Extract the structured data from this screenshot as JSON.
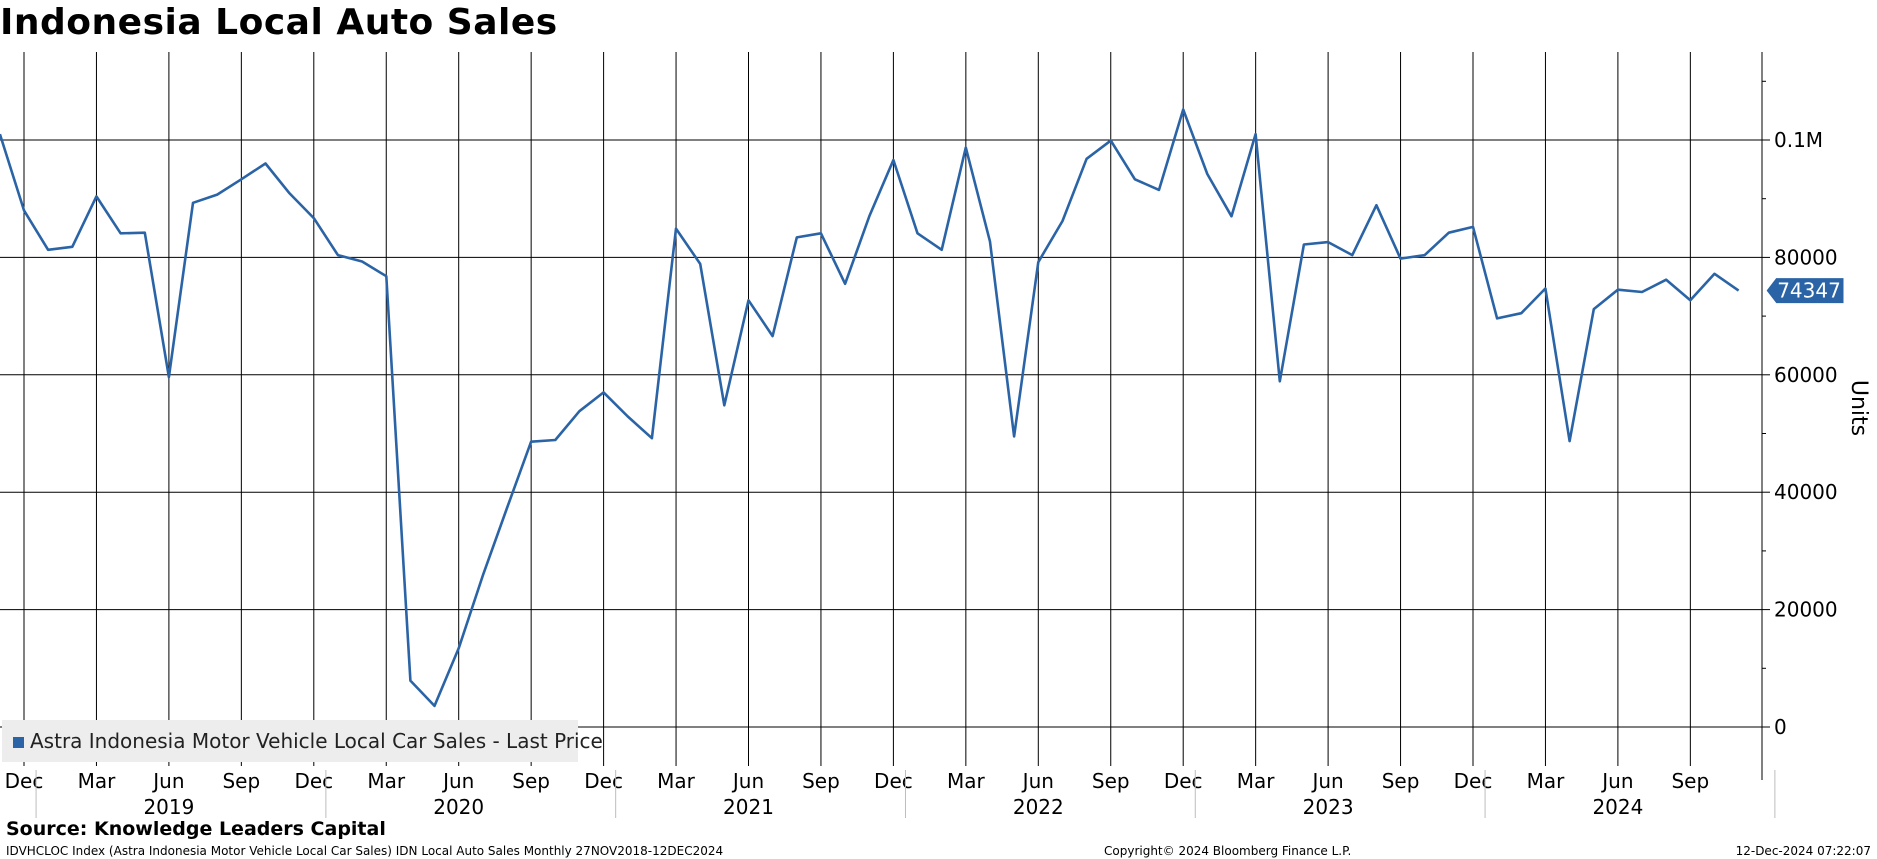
{
  "title": "Indonesia Local Auto Sales",
  "footer": {
    "source": "Source: Knowledge Leaders Capital",
    "description": "IDVHCLOC Index (Astra Indonesia Motor Vehicle Local Car Sales) IDN Local Auto Sales  Monthly 27NOV2018-12DEC2024",
    "copyright": "Copyright© 2024 Bloomberg Finance L.P.",
    "timestamp": "12-Dec-2024 07:22:07"
  },
  "legend": {
    "label": "Astra Indonesia Motor Vehicle Local Car Sales - Last Price",
    "position": "bottom-left"
  },
  "colors": {
    "line": "#2b64a6",
    "grid": "#000000",
    "background": "#ffffff",
    "legend_bg": "#ededed"
  },
  "chart_data": {
    "type": "line",
    "ylabel": "Units",
    "ylim": [
      -6000,
      116000
    ],
    "y_ticks": [
      {
        "value": 0,
        "label": "0"
      },
      {
        "value": 20000,
        "label": "20000"
      },
      {
        "value": 40000,
        "label": "40000"
      },
      {
        "value": 60000,
        "label": "60000"
      },
      {
        "value": 80000,
        "label": "80000"
      },
      {
        "value": 100000,
        "label": "0.1M"
      }
    ],
    "x_month_ticks": [
      {
        "date": "2018-12",
        "label": "Dec"
      },
      {
        "date": "2019-03",
        "label": "Mar"
      },
      {
        "date": "2019-06",
        "label": "Jun"
      },
      {
        "date": "2019-09",
        "label": "Sep"
      },
      {
        "date": "2019-12",
        "label": "Dec"
      },
      {
        "date": "2020-03",
        "label": "Mar"
      },
      {
        "date": "2020-06",
        "label": "Jun"
      },
      {
        "date": "2020-09",
        "label": "Sep"
      },
      {
        "date": "2020-12",
        "label": "Dec"
      },
      {
        "date": "2021-03",
        "label": "Mar"
      },
      {
        "date": "2021-06",
        "label": "Jun"
      },
      {
        "date": "2021-09",
        "label": "Sep"
      },
      {
        "date": "2021-12",
        "label": "Dec"
      },
      {
        "date": "2022-03",
        "label": "Mar"
      },
      {
        "date": "2022-06",
        "label": "Jun"
      },
      {
        "date": "2022-09",
        "label": "Sep"
      },
      {
        "date": "2022-12",
        "label": "Dec"
      },
      {
        "date": "2023-03",
        "label": "Mar"
      },
      {
        "date": "2023-06",
        "label": "Jun"
      },
      {
        "date": "2023-09",
        "label": "Sep"
      },
      {
        "date": "2023-12",
        "label": "Dec"
      },
      {
        "date": "2024-03",
        "label": "Mar"
      },
      {
        "date": "2024-06",
        "label": "Jun"
      },
      {
        "date": "2024-09",
        "label": "Sep"
      }
    ],
    "x_year_labels": [
      {
        "date": "2019-06",
        "label": "2019"
      },
      {
        "date": "2020-06",
        "label": "2020"
      },
      {
        "date": "2021-06",
        "label": "2021"
      },
      {
        "date": "2022-06",
        "label": "2022"
      },
      {
        "date": "2023-06",
        "label": "2023"
      },
      {
        "date": "2024-06",
        "label": "2024"
      }
    ],
    "series": [
      {
        "name": "Astra Indonesia Motor Vehicle Local Car Sales - Last Price",
        "last_value_label": "74347",
        "points": [
          {
            "x": "2018-11",
            "y": 101000
          },
          {
            "x": "2018-12",
            "y": 88000
          },
          {
            "x": "2019-01",
            "y": 81300
          },
          {
            "x": "2019-02",
            "y": 81800
          },
          {
            "x": "2019-03",
            "y": 90400
          },
          {
            "x": "2019-04",
            "y": 84100
          },
          {
            "x": "2019-05",
            "y": 84200
          },
          {
            "x": "2019-06",
            "y": 59600
          },
          {
            "x": "2019-07",
            "y": 89300
          },
          {
            "x": "2019-08",
            "y": 90700
          },
          {
            "x": "2019-09",
            "y": 93300
          },
          {
            "x": "2019-10",
            "y": 96000
          },
          {
            "x": "2019-11",
            "y": 90900
          },
          {
            "x": "2019-12",
            "y": 86700
          },
          {
            "x": "2020-01",
            "y": 80400
          },
          {
            "x": "2020-02",
            "y": 79300
          },
          {
            "x": "2020-03",
            "y": 76800
          },
          {
            "x": "2020-04",
            "y": 7900
          },
          {
            "x": "2020-05",
            "y": 3600
          },
          {
            "x": "2020-06",
            "y": 13400
          },
          {
            "x": "2020-07",
            "y": 25800
          },
          {
            "x": "2020-08",
            "y": 37300
          },
          {
            "x": "2020-09",
            "y": 48600
          },
          {
            "x": "2020-10",
            "y": 48900
          },
          {
            "x": "2020-11",
            "y": 53800
          },
          {
            "x": "2020-12",
            "y": 57000
          },
          {
            "x": "2021-01",
            "y": 52900
          },
          {
            "x": "2021-02",
            "y": 49200
          },
          {
            "x": "2021-03",
            "y": 84900
          },
          {
            "x": "2021-04",
            "y": 78900
          },
          {
            "x": "2021-05",
            "y": 54800
          },
          {
            "x": "2021-06",
            "y": 72700
          },
          {
            "x": "2021-07",
            "y": 66600
          },
          {
            "x": "2021-08",
            "y": 83400
          },
          {
            "x": "2021-09",
            "y": 84100
          },
          {
            "x": "2021-10",
            "y": 75500
          },
          {
            "x": "2021-11",
            "y": 87000
          },
          {
            "x": "2021-12",
            "y": 96600
          },
          {
            "x": "2022-01",
            "y": 84100
          },
          {
            "x": "2022-02",
            "y": 81300
          },
          {
            "x": "2022-03",
            "y": 98700
          },
          {
            "x": "2022-04",
            "y": 82700
          },
          {
            "x": "2022-05",
            "y": 49500
          },
          {
            "x": "2022-06",
            "y": 79200
          },
          {
            "x": "2022-07",
            "y": 86200
          },
          {
            "x": "2022-08",
            "y": 96800
          },
          {
            "x": "2022-09",
            "y": 99900
          },
          {
            "x": "2022-10",
            "y": 93300
          },
          {
            "x": "2022-11",
            "y": 91500
          },
          {
            "x": "2022-12",
            "y": 105200
          },
          {
            "x": "2023-01",
            "y": 94200
          },
          {
            "x": "2023-02",
            "y": 87000
          },
          {
            "x": "2023-03",
            "y": 101000
          },
          {
            "x": "2023-04",
            "y": 58900
          },
          {
            "x": "2023-05",
            "y": 82200
          },
          {
            "x": "2023-06",
            "y": 82600
          },
          {
            "x": "2023-07",
            "y": 80400
          },
          {
            "x": "2023-08",
            "y": 88900
          },
          {
            "x": "2023-09",
            "y": 79800
          },
          {
            "x": "2023-10",
            "y": 80400
          },
          {
            "x": "2023-11",
            "y": 84200
          },
          {
            "x": "2023-12",
            "y": 85200
          },
          {
            "x": "2024-01",
            "y": 69600
          },
          {
            "x": "2024-02",
            "y": 70500
          },
          {
            "x": "2024-03",
            "y": 74700
          },
          {
            "x": "2024-04",
            "y": 48700
          },
          {
            "x": "2024-05",
            "y": 71200
          },
          {
            "x": "2024-06",
            "y": 74500
          },
          {
            "x": "2024-07",
            "y": 74100
          },
          {
            "x": "2024-08",
            "y": 76200
          },
          {
            "x": "2024-09",
            "y": 72700
          },
          {
            "x": "2024-10",
            "y": 77200
          },
          {
            "x": "2024-11",
            "y": 74347
          }
        ]
      }
    ]
  }
}
